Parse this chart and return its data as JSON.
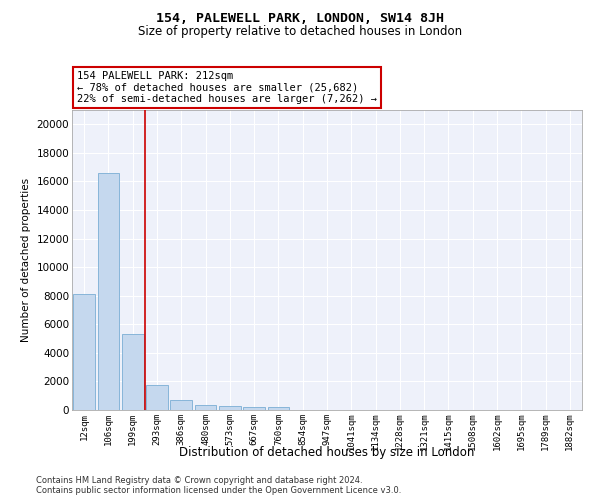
{
  "title": "154, PALEWELL PARK, LONDON, SW14 8JH",
  "subtitle": "Size of property relative to detached houses in London",
  "xlabel": "Distribution of detached houses by size in London",
  "ylabel": "Number of detached properties",
  "annotation_line1": "154 PALEWELL PARK: 212sqm",
  "annotation_line2": "← 78% of detached houses are smaller (25,682)",
  "annotation_line3": "22% of semi-detached houses are larger (7,262) →",
  "bar_labels": [
    "12sqm",
    "106sqm",
    "199sqm",
    "293sqm",
    "386sqm",
    "480sqm",
    "573sqm",
    "667sqm",
    "760sqm",
    "854sqm",
    "947sqm",
    "1041sqm",
    "1134sqm",
    "1228sqm",
    "1321sqm",
    "1415sqm",
    "1508sqm",
    "1602sqm",
    "1695sqm",
    "1789sqm",
    "1882sqm"
  ],
  "bar_values": [
    8100,
    16600,
    5300,
    1750,
    680,
    340,
    265,
    215,
    180,
    0,
    0,
    0,
    0,
    0,
    0,
    0,
    0,
    0,
    0,
    0,
    0
  ],
  "bar_color": "#c5d8ee",
  "bar_edge_color": "#7aaed4",
  "red_line_x": 2.5,
  "ylim": [
    0,
    21000
  ],
  "yticks": [
    0,
    2000,
    4000,
    6000,
    8000,
    10000,
    12000,
    14000,
    16000,
    18000,
    20000
  ],
  "background_color": "#eef1fa",
  "grid_color": "#ffffff",
  "footer_line1": "Contains HM Land Registry data © Crown copyright and database right 2024.",
  "footer_line2": "Contains public sector information licensed under the Open Government Licence v3.0."
}
